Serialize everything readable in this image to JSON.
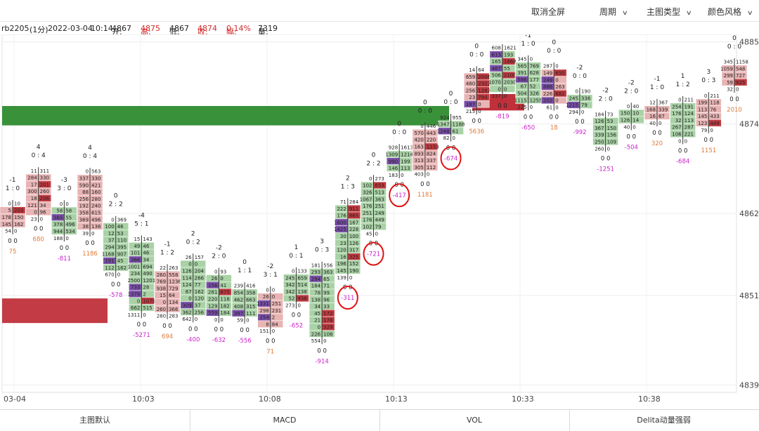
{
  "toolbar": {
    "fullscreen_exit": "取消全屏",
    "period": "周期",
    "main_chart_type": "主图类型",
    "color_style": "颜色风格"
  },
  "info": {
    "symbol": "rb2205",
    "interval": "(1分)",
    "date": "2022-03-04",
    "time": "10:14",
    "open_label": "开:",
    "open": "4867",
    "high_label": "高:",
    "high": "4875",
    "low_label": "低:",
    "low": "4867",
    "close_label": "收:",
    "close": "4874",
    "change_label": "幅:",
    "change": "0.14%",
    "volume_label": "量:",
    "volume": "7319"
  },
  "colors": {
    "up_bg": "#e8b4b4",
    "down_bg": "#a9d2a6",
    "neutral_bg": "#e4e6b8",
    "hot_buy": "#c0393f",
    "hot_sell": "#7a4fa8",
    "delta_pos": "#e07a3a",
    "delta_neg": "#cc22cc",
    "bar_green": "#2e8b2e",
    "bar_red": "#c0303a",
    "circle": "#e01010"
  },
  "chart_data": {
    "type": "footprint",
    "y_ticks": [
      4839,
      4851,
      4862,
      4874,
      4885
    ],
    "ylim": [
      4838,
      4886
    ],
    "x_ticks": [
      "03-04",
      "10:03",
      "10:08",
      "10:13",
      "10:33",
      "10:38"
    ],
    "candles": [
      {
        "ratio": "1 : 0",
        "top": "-1",
        "delta": "75",
        "delta_sign": "pos",
        "high": 4864,
        "low": 4859,
        "rows": [
          [
            "0",
            "10"
          ],
          [
            "5",
            "203"
          ],
          [
            "178",
            "150"
          ],
          [
            "145",
            "162"
          ],
          [
            "54",
            "0"
          ]
        ]
      },
      {
        "ratio": "0 : 4",
        "top": "4",
        "delta": "680",
        "delta_sign": "pos",
        "high": 4870,
        "low": 4859,
        "rows": [
          [
            "11",
            "311"
          ],
          [
            "284",
            "330"
          ],
          [
            "17",
            "201"
          ],
          [
            "300",
            "260"
          ],
          [
            "18",
            "206"
          ],
          [
            "121",
            "34"
          ],
          [
            "0",
            "96"
          ],
          [
            "23",
            "0"
          ]
        ]
      },
      {
        "ratio": "3 : 0",
        "top": "-3",
        "delta": "-811",
        "delta_sign": "neg",
        "high": 4865,
        "low": 4857,
        "rows": [
          [
            "0",
            "0"
          ],
          [
            "58",
            "58"
          ],
          [
            "565",
            "55"
          ],
          [
            "378",
            "496"
          ],
          [
            "944",
            "534"
          ],
          [
            "188",
            "0"
          ]
        ]
      },
      {
        "ratio": "0 : 4",
        "top": "4",
        "delta": "1186",
        "delta_sign": "pos",
        "high": 4870,
        "low": 4857,
        "rows": [
          [
            "0",
            "563"
          ],
          [
            "337",
            "330"
          ],
          [
            "590",
            "421"
          ],
          [
            "88",
            "160"
          ],
          [
            "256",
            "280"
          ],
          [
            "192",
            "240"
          ],
          [
            "358",
            "615"
          ],
          [
            "369",
            "496"
          ],
          [
            "38",
            "136"
          ],
          [
            "39",
            "0"
          ]
        ]
      },
      {
        "ratio": "2 : 2",
        "top": "0",
        "delta": "-578",
        "delta_sign": "neg",
        "high": 4863,
        "low": 4852,
        "rows": [
          [
            "0",
            "369"
          ],
          [
            "100",
            "46"
          ],
          [
            "12",
            "53"
          ],
          [
            "37",
            "110"
          ],
          [
            "294",
            "395"
          ],
          [
            "1168",
            "907"
          ],
          [
            "191",
            "45"
          ],
          [
            "112",
            "162"
          ],
          [
            "670",
            "0"
          ]
        ]
      },
      {
        "ratio": "5 : 1",
        "top": "-4",
        "delta": "-5271",
        "delta_sign": "neg",
        "high": 4861,
        "low": 4846,
        "rows": [
          [
            "15",
            "143"
          ],
          [
            "49",
            "46"
          ],
          [
            "101",
            "46"
          ],
          [
            "366",
            "34"
          ],
          [
            "1001",
            "694"
          ],
          [
            "234",
            "490"
          ],
          [
            "2500",
            "1201"
          ],
          [
            "733",
            "28"
          ],
          [
            "1379",
            "2"
          ],
          [
            "0",
            "1079"
          ],
          [
            "662",
            "515"
          ],
          [
            "1311",
            "0"
          ]
        ]
      },
      {
        "ratio": "1 : 2",
        "top": "-1",
        "delta": "694",
        "delta_sign": "pos",
        "high": 4856,
        "low": 4847,
        "rows": [
          [
            "22",
            "263"
          ],
          [
            "260",
            "558"
          ],
          [
            "769",
            "1236"
          ],
          [
            "938",
            "729"
          ],
          [
            "15",
            "64"
          ],
          [
            "0",
            "134"
          ],
          [
            "260",
            "366"
          ],
          [
            "280",
            "283"
          ]
        ]
      },
      {
        "ratio": "0 : 2",
        "top": "2",
        "delta": "-400",
        "delta_sign": "neg",
        "high": 4857,
        "low": 4847,
        "rows": [
          [
            "26",
            "157"
          ],
          [
            "0",
            "0"
          ],
          [
            "126",
            "204"
          ],
          [
            "114",
            "266"
          ],
          [
            "124",
            "77"
          ],
          [
            "67",
            "162"
          ],
          [
            "0",
            "120"
          ],
          [
            "309",
            "37"
          ],
          [
            "362",
            "256"
          ],
          [
            "642",
            "0"
          ]
        ]
      },
      {
        "ratio": "2 : 0",
        "top": "-2",
        "delta": "-632",
        "delta_sign": "neg",
        "high": 4855,
        "low": 4847,
        "rows": [
          [
            "0",
            "93"
          ],
          [
            "26",
            "0"
          ],
          [
            "156",
            "41"
          ],
          [
            "281",
            "875"
          ],
          [
            "220",
            "118"
          ],
          [
            "129",
            "182"
          ],
          [
            "559",
            "184"
          ],
          [
            "0",
            "0"
          ]
        ]
      },
      {
        "ratio": "1 : 1",
        "top": "0",
        "delta": "-556",
        "delta_sign": "neg",
        "high": 4853,
        "low": 4847,
        "rows": [
          [
            "239",
            "416"
          ],
          [
            "854",
            "358"
          ],
          [
            "462",
            "663"
          ],
          [
            "408",
            "315"
          ],
          [
            "397",
            "111"
          ],
          [
            "59",
            "0"
          ]
        ]
      },
      {
        "ratio": "3 : 1",
        "top": "-2",
        "delta": "71",
        "delta_sign": "pos",
        "high": 4853,
        "low": 4845,
        "rows": [
          [
            "0",
            "0"
          ],
          [
            "26",
            "0"
          ],
          [
            "1331",
            "251"
          ],
          [
            "298",
            "231"
          ],
          [
            "254",
            "2"
          ],
          [
            "8",
            "84"
          ],
          [
            "151",
            "0"
          ]
        ]
      },
      {
        "ratio": "0 : 1",
        "top": "1",
        "delta": "-652",
        "delta_sign": "neg",
        "high": 4856,
        "low": 4848,
        "rows": [
          [
            "0",
            "133"
          ],
          [
            "245",
            "659"
          ],
          [
            "342",
            "514"
          ],
          [
            "342",
            "138"
          ],
          [
            "52",
            "436"
          ],
          [
            "273",
            "0"
          ]
        ]
      },
      {
        "ratio": "0 : 3",
        "top": "3",
        "delta": "-914",
        "delta_sign": "neg",
        "high": 4857,
        "low": 4843,
        "rows": [
          [
            "181",
            "556"
          ],
          [
            "293",
            "363"
          ],
          [
            "294",
            "65"
          ],
          [
            "184",
            "71"
          ],
          [
            "78",
            "99"
          ],
          [
            "138",
            "96"
          ],
          [
            "34",
            "33"
          ],
          [
            "45",
            "172"
          ],
          [
            "21",
            "178"
          ],
          [
            "0",
            "329"
          ],
          [
            "226",
            "108"
          ],
          [
            "554",
            "0"
          ]
        ]
      },
      {
        "ratio": "1 : 3",
        "top": "2",
        "delta": "-311",
        "delta_sign": "neg",
        "high": 4866,
        "low": 4851,
        "rows": [
          [
            "71",
            "284"
          ],
          [
            "222",
            "911"
          ],
          [
            "176",
            "865"
          ],
          [
            "1600",
            "167"
          ],
          [
            "1425",
            "228"
          ],
          [
            "30",
            "100"
          ],
          [
            "23",
            "126"
          ],
          [
            "120",
            "317"
          ],
          [
            "16",
            "325"
          ],
          [
            "196",
            "152"
          ],
          [
            "145",
            "190"
          ],
          [
            "139",
            "0"
          ]
        ]
      },
      {
        "ratio": "2 : 2",
        "top": "0",
        "delta": "-721",
        "delta_sign": "neg",
        "high": 4868,
        "low": 4858,
        "rows": [
          [
            "0",
            "273"
          ],
          [
            "102",
            "653"
          ],
          [
            "326",
            "513"
          ],
          [
            "1067",
            "363"
          ],
          [
            "176",
            "251"
          ],
          [
            "251",
            "249"
          ],
          [
            "176",
            "449"
          ],
          [
            "102",
            "79"
          ],
          [
            "45",
            "0"
          ]
        ]
      },
      {
        "ratio": "0 : 0",
        "top": "0",
        "delta": "-417",
        "delta_sign": "neg",
        "high": 4871,
        "low": 4867,
        "rows": [
          [
            "928",
            "1613"
          ],
          [
            "1309",
            "1214"
          ],
          [
            "990",
            "199"
          ],
          [
            "146",
            "113"
          ],
          [
            "183",
            "0"
          ]
        ]
      },
      {
        "ratio": "0 : 0",
        "top": "0",
        "delta": "1181",
        "delta_sign": "pos",
        "high": 4874,
        "low": 4867,
        "rows": [
          [
            "0",
            "446"
          ],
          [
            "570",
            "443"
          ],
          [
            "420",
            "220"
          ],
          [
            "163",
            "1153"
          ],
          [
            "893",
            "824"
          ],
          [
            "313",
            "337"
          ],
          [
            "305",
            "112"
          ],
          [
            "403",
            "0"
          ]
        ]
      },
      {
        "ratio": "0 : 0",
        "top": "0",
        "delta": "-674",
        "delta_sign": "neg",
        "high": 4875,
        "low": 4872,
        "rows": [
          [
            "924",
            "955"
          ],
          [
            "1347",
            "1188"
          ],
          [
            "1248",
            "61"
          ],
          [
            "82",
            "0"
          ]
        ]
      },
      {
        "ratio": "0 : 0",
        "top": "0",
        "delta": "5636",
        "delta_sign": "pos",
        "high": 4885,
        "low": 4872,
        "rows": [
          [
            "14",
            "64"
          ],
          [
            "659",
            "2006"
          ],
          [
            "480",
            "2322"
          ],
          [
            "256",
            "1287"
          ],
          [
            "23",
            "794"
          ],
          [
            "187",
            "0"
          ],
          [
            "215",
            "0"
          ]
        ]
      },
      {
        "ratio": "0 : 0",
        "top": "0",
        "delta": "-819",
        "delta_sign": "neg",
        "high": 4885,
        "low": 4877,
        "rows": [
          [
            "608",
            "1621"
          ],
          [
            "613",
            "193"
          ],
          [
            "165",
            "1668"
          ],
          [
            "467",
            "55"
          ],
          [
            "506",
            "2100"
          ],
          [
            "1070",
            "2030"
          ],
          [
            "0",
            "0"
          ],
          [
            "337",
            "0"
          ]
        ]
      },
      {
        "ratio": "1 : 0",
        "top": "-1",
        "delta": "-650",
        "delta_sign": "neg",
        "high": 4884,
        "low": 4875,
        "rows": [
          [
            "345",
            "0"
          ],
          [
            "565",
            "769"
          ],
          [
            "391",
            "628"
          ],
          [
            "586",
            "177"
          ],
          [
            "67",
            "52"
          ],
          [
            "504",
            "326"
          ],
          [
            "1115",
            "1255"
          ],
          [
            "225",
            "0"
          ]
        ]
      },
      {
        "ratio": "0 : 0",
        "top": "0",
        "delta": "18",
        "delta_sign": "pos",
        "high": 4882,
        "low": 4876,
        "rows": [
          [
            "287",
            "0"
          ],
          [
            "149",
            "650"
          ],
          [
            "249",
            "0"
          ],
          [
            "886",
            "263"
          ],
          [
            "226",
            "682"
          ],
          [
            "202",
            "0"
          ],
          [
            "61",
            "0"
          ]
        ]
      },
      {
        "ratio": "0 : 0",
        "top": "-2",
        "delta": "-992",
        "delta_sign": "neg",
        "high": 4881,
        "low": 4873,
        "rows": [
          [
            "0",
            "190"
          ],
          [
            "245",
            "336"
          ],
          [
            "1215",
            "79"
          ],
          [
            "294",
            "0"
          ]
        ]
      },
      {
        "ratio": "2 : 0",
        "top": "-2",
        "delta": "-1251",
        "delta_sign": "neg",
        "high": 4878,
        "low": 4868,
        "rows": [
          [
            "184",
            "73"
          ],
          [
            "126",
            "53"
          ],
          [
            "367",
            "150"
          ],
          [
            "339",
            "156"
          ],
          [
            "250",
            "109"
          ],
          [
            "260",
            "0"
          ]
        ]
      },
      {
        "ratio": "2 : 0",
        "top": "-2",
        "delta": "-504",
        "delta_sign": "neg",
        "high": 4878,
        "low": 4872,
        "rows": [
          [
            "0",
            "40"
          ],
          [
            "150",
            "10"
          ],
          [
            "126",
            "14"
          ],
          [
            "40",
            "0"
          ]
        ]
      },
      {
        "ratio": "1 : 0",
        "top": "-1",
        "delta": "320",
        "delta_sign": "pos",
        "high": 4879,
        "low": 4872,
        "rows": [
          [
            "12",
            "367"
          ],
          [
            "168",
            "339"
          ],
          [
            "16",
            "67"
          ],
          [
            "40",
            "0"
          ]
        ]
      },
      {
        "ratio": "1 : 2",
        "top": "1",
        "delta": "-684",
        "delta_sign": "neg",
        "high": 4879,
        "low": 4870,
        "rows": [
          [
            "0",
            "211"
          ],
          [
            "254",
            "191"
          ],
          [
            "176",
            "124"
          ],
          [
            "32",
            "113"
          ],
          [
            "267",
            "287"
          ],
          [
            "106",
            "221"
          ],
          [
            "0",
            "0"
          ]
        ]
      },
      {
        "ratio": "0 : 3",
        "top": "3",
        "delta": "1151",
        "delta_sign": "pos",
        "high": 4880,
        "low": 4871,
        "rows": [
          [
            "0",
            "211"
          ],
          [
            "199",
            "118"
          ],
          [
            "113",
            "76"
          ],
          [
            "145",
            "433"
          ],
          [
            "123",
            "449"
          ],
          [
            "79",
            "0"
          ]
        ]
      },
      {
        "ratio": "0 : 0",
        "top": "0",
        "delta": "2010",
        "delta_sign": "pos",
        "high": 4885,
        "low": 4876,
        "rows": [
          [
            "345",
            "1158"
          ],
          [
            "1059",
            "548"
          ],
          [
            "299",
            "727"
          ],
          [
            "59",
            "925"
          ],
          [
            "32",
            "0"
          ]
        ]
      }
    ],
    "circled_deltas": [
      "-311",
      "-721",
      "-417",
      "-674"
    ]
  },
  "bottom_tabs": [
    "主图默认",
    "MACD",
    "VOL",
    "Delita动量强弱"
  ]
}
